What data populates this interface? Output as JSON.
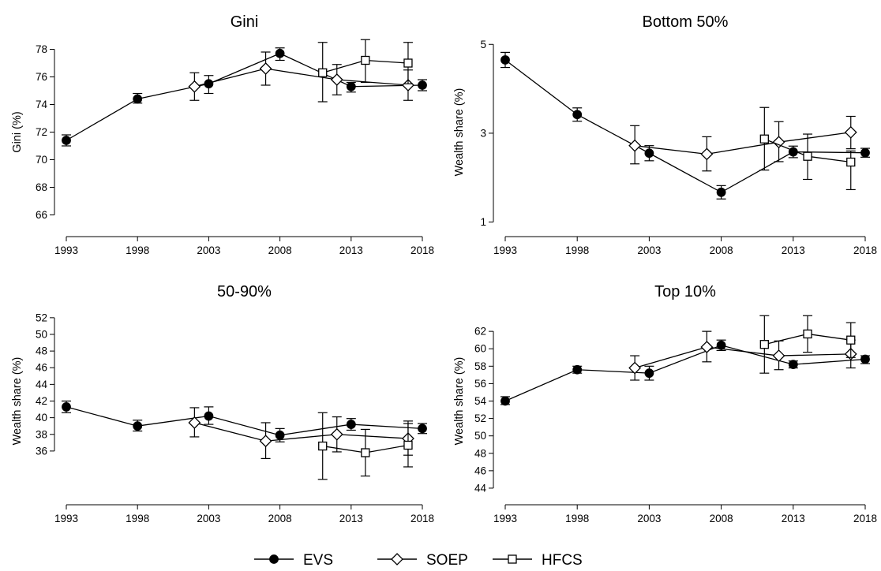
{
  "chart_data": [
    {
      "type": "line",
      "title": "Gini",
      "ylabel": "Gini (%)",
      "ylim": [
        65,
        79
      ],
      "yticks": [
        66,
        68,
        70,
        72,
        74,
        76,
        78
      ],
      "xticks": [
        1993,
        1998,
        2003,
        2008,
        2013,
        2018
      ],
      "series": [
        {
          "name": "EVS",
          "marker": "circle",
          "points": [
            {
              "x": 1993,
              "y": 71.4,
              "lo": 71.0,
              "hi": 71.8
            },
            {
              "x": 1998,
              "y": 74.4,
              "lo": 74.1,
              "hi": 74.8
            },
            {
              "x": 2003,
              "y": 75.5,
              "lo": 74.8,
              "hi": 76.1
            },
            {
              "x": 2008,
              "y": 77.7,
              "lo": 77.2,
              "hi": 78.1
            },
            {
              "x": 2013,
              "y": 75.3,
              "lo": 74.9,
              "hi": 75.6
            },
            {
              "x": 2018,
              "y": 75.4,
              "lo": 75.0,
              "hi": 75.8
            }
          ]
        },
        {
          "name": "SOEP",
          "marker": "diamond",
          "points": [
            {
              "x": 2002,
              "y": 75.3,
              "lo": 74.3,
              "hi": 76.3
            },
            {
              "x": 2007,
              "y": 76.6,
              "lo": 75.4,
              "hi": 77.8
            },
            {
              "x": 2012,
              "y": 75.8,
              "lo": 74.7,
              "hi": 76.9
            },
            {
              "x": 2017,
              "y": 75.4,
              "lo": 74.3,
              "hi": 76.5
            }
          ]
        },
        {
          "name": "HFCS",
          "marker": "square",
          "points": [
            {
              "x": 2011,
              "y": 76.3,
              "lo": 74.2,
              "hi": 78.5
            },
            {
              "x": 2014,
              "y": 77.2,
              "lo": 75.6,
              "hi": 78.7
            },
            {
              "x": 2017,
              "y": 77.0,
              "lo": 75.5,
              "hi": 78.5
            }
          ]
        }
      ]
    },
    {
      "type": "line",
      "title": "Bottom 50%",
      "ylabel": "Wealth share (%)",
      "ylim": [
        0.85,
        5.2
      ],
      "yticks": [
        1,
        3,
        5
      ],
      "xticks": [
        1993,
        1998,
        2003,
        2008,
        2013,
        2018
      ],
      "series": [
        {
          "name": "EVS",
          "marker": "circle",
          "points": [
            {
              "x": 1993,
              "y": 4.65,
              "lo": 4.48,
              "hi": 4.82
            },
            {
              "x": 1998,
              "y": 3.42,
              "lo": 3.27,
              "hi": 3.57
            },
            {
              "x": 2003,
              "y": 2.55,
              "lo": 2.38,
              "hi": 2.72
            },
            {
              "x": 2008,
              "y": 1.67,
              "lo": 1.52,
              "hi": 1.82
            },
            {
              "x": 2013,
              "y": 2.58,
              "lo": 2.45,
              "hi": 2.71
            },
            {
              "x": 2018,
              "y": 2.56,
              "lo": 2.46,
              "hi": 2.66
            }
          ]
        },
        {
          "name": "SOEP",
          "marker": "diamond",
          "points": [
            {
              "x": 2002,
              "y": 2.72,
              "lo": 2.31,
              "hi": 3.17
            },
            {
              "x": 2007,
              "y": 2.53,
              "lo": 2.15,
              "hi": 2.92
            },
            {
              "x": 2012,
              "y": 2.8,
              "lo": 2.36,
              "hi": 3.26
            },
            {
              "x": 2017,
              "y": 3.02,
              "lo": 2.65,
              "hi": 3.38
            }
          ]
        },
        {
          "name": "HFCS",
          "marker": "square",
          "points": [
            {
              "x": 2011,
              "y": 2.87,
              "lo": 2.17,
              "hi": 3.58
            },
            {
              "x": 2014,
              "y": 2.48,
              "lo": 1.96,
              "hi": 2.98
            },
            {
              "x": 2017,
              "y": 2.35,
              "lo": 1.73,
              "hi": 2.6
            }
          ]
        }
      ]
    },
    {
      "type": "line",
      "title": "50-90%",
      "ylabel": "Wealth share (%)",
      "ylim": [
        30.5,
        53.5
      ],
      "yticks": [
        36,
        38,
        40,
        42,
        44,
        46,
        48,
        50,
        52
      ],
      "xticks": [
        1993,
        1998,
        2003,
        2008,
        2013,
        2018
      ],
      "series": [
        {
          "name": "EVS",
          "marker": "circle",
          "points": [
            {
              "x": 1993,
              "y": 41.3,
              "lo": 40.6,
              "hi": 42.0
            },
            {
              "x": 1998,
              "y": 39.0,
              "lo": 38.4,
              "hi": 39.7
            },
            {
              "x": 2003,
              "y": 40.2,
              "lo": 39.2,
              "hi": 41.3
            },
            {
              "x": 2008,
              "y": 37.9,
              "lo": 37.1,
              "hi": 38.7
            },
            {
              "x": 2013,
              "y": 39.2,
              "lo": 38.5,
              "hi": 39.9
            },
            {
              "x": 2018,
              "y": 38.7,
              "lo": 38.1,
              "hi": 39.3
            }
          ]
        },
        {
          "name": "SOEP",
          "marker": "diamond",
          "points": [
            {
              "x": 2002,
              "y": 39.4,
              "lo": 37.7,
              "hi": 41.2
            },
            {
              "x": 2007,
              "y": 37.2,
              "lo": 35.1,
              "hi": 39.4
            },
            {
              "x": 2012,
              "y": 38.0,
              "lo": 35.9,
              "hi": 40.1
            },
            {
              "x": 2017,
              "y": 37.5,
              "lo": 35.5,
              "hi": 39.6
            }
          ]
        },
        {
          "name": "HFCS",
          "marker": "square",
          "points": [
            {
              "x": 2011,
              "y": 36.6,
              "lo": 32.6,
              "hi": 40.6
            },
            {
              "x": 2014,
              "y": 35.8,
              "lo": 33.0,
              "hi": 38.6
            },
            {
              "x": 2017,
              "y": 36.7,
              "lo": 34.1,
              "hi": 39.3
            }
          ]
        }
      ]
    },
    {
      "type": "line",
      "title": "Top 10%",
      "ylabel": "Wealth share (%)",
      "ylim": [
        43,
        65
      ],
      "yticks": [
        44,
        46,
        48,
        50,
        52,
        54,
        56,
        58,
        60,
        62
      ],
      "xticks": [
        1993,
        1998,
        2003,
        2008,
        2013,
        2018
      ],
      "series": [
        {
          "name": "EVS",
          "marker": "circle",
          "points": [
            {
              "x": 1993,
              "y": 54.0,
              "lo": 53.6,
              "hi": 54.5
            },
            {
              "x": 1998,
              "y": 57.6,
              "lo": 57.2,
              "hi": 58.0
            },
            {
              "x": 2003,
              "y": 57.2,
              "lo": 56.4,
              "hi": 58.0
            },
            {
              "x": 2008,
              "y": 60.4,
              "lo": 59.8,
              "hi": 61.0
            },
            {
              "x": 2013,
              "y": 58.2,
              "lo": 57.8,
              "hi": 58.6
            },
            {
              "x": 2018,
              "y": 58.8,
              "lo": 58.3,
              "hi": 59.2
            }
          ]
        },
        {
          "name": "SOEP",
          "marker": "diamond",
          "points": [
            {
              "x": 2002,
              "y": 57.8,
              "lo": 56.4,
              "hi": 59.2
            },
            {
              "x": 2007,
              "y": 60.2,
              "lo": 58.5,
              "hi": 62.0
            },
            {
              "x": 2012,
              "y": 59.2,
              "lo": 57.6,
              "hi": 60.9
            },
            {
              "x": 2017,
              "y": 59.4,
              "lo": 57.8,
              "hi": 61.0
            }
          ]
        },
        {
          "name": "HFCS",
          "marker": "square",
          "points": [
            {
              "x": 2011,
              "y": 60.5,
              "lo": 57.2,
              "hi": 63.8
            },
            {
              "x": 2014,
              "y": 61.7,
              "lo": 59.6,
              "hi": 63.8
            },
            {
              "x": 2017,
              "y": 61.0,
              "lo": 59.0,
              "hi": 63.0
            }
          ]
        }
      ]
    }
  ],
  "legend": {
    "position": "bottom",
    "items": [
      {
        "label": "EVS",
        "marker": "circle"
      },
      {
        "label": "SOEP",
        "marker": "diamond"
      },
      {
        "label": "HFCS",
        "marker": "square"
      }
    ]
  }
}
